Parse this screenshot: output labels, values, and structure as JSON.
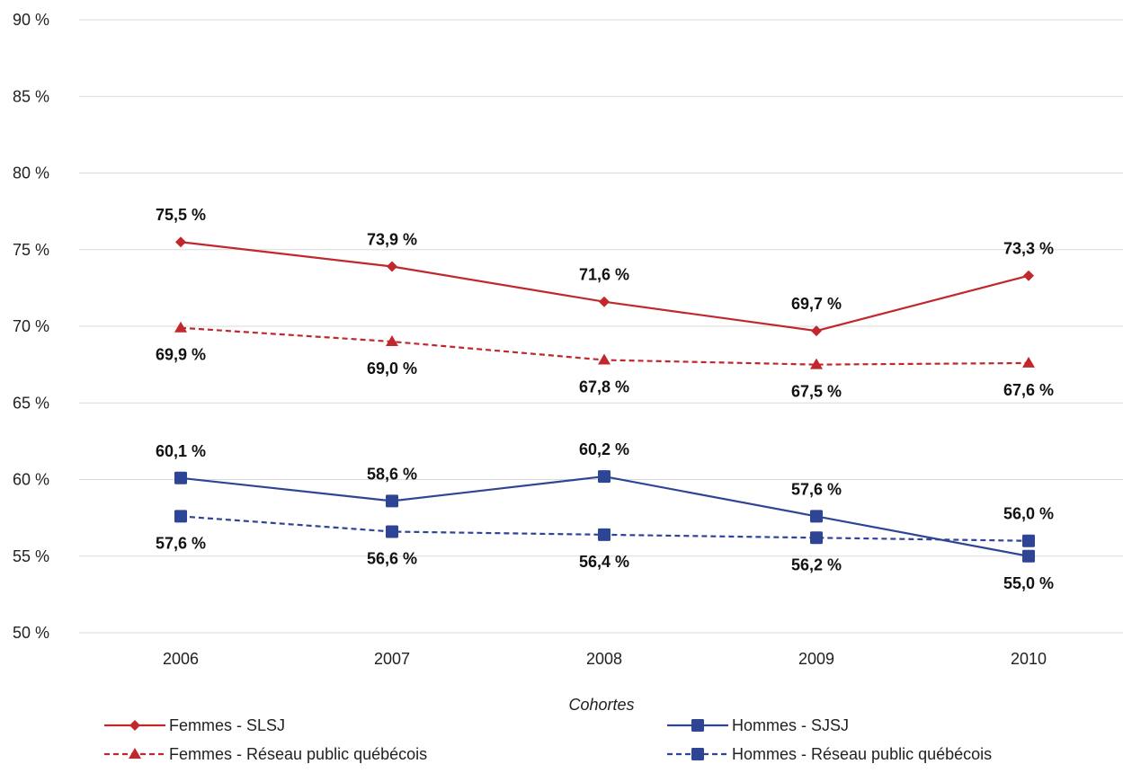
{
  "chart_data": {
    "type": "line",
    "title": "",
    "xlabel": "Cohortes",
    "ylabel": "",
    "categories": [
      "2006",
      "2007",
      "2008",
      "2009",
      "2010"
    ],
    "ylim": [
      50,
      90
    ],
    "yticks": [
      50,
      55,
      60,
      65,
      70,
      75,
      80,
      85,
      90
    ],
    "ytick_labels": [
      "50 %",
      "55 %",
      "60 %",
      "65 %",
      "70 %",
      "75 %",
      "80 %",
      "85 %",
      "90 %"
    ],
    "grid": true,
    "legend_position": "bottom",
    "series": [
      {
        "name": "Femmes - SLSJ",
        "values": [
          75.5,
          73.9,
          71.6,
          69.7,
          73.3
        ],
        "labels": [
          "75,5 %",
          "73,9 %",
          "71,6 %",
          "69,7 %",
          "73,3 %"
        ],
        "color": "#c0282d",
        "line_style": "solid",
        "marker": "diamond",
        "label_side": "above"
      },
      {
        "name": "Femmes - Réseau public québécois",
        "values": [
          69.9,
          69.0,
          67.8,
          67.5,
          67.6
        ],
        "labels": [
          "69,9 %",
          "69,0 %",
          "67,8 %",
          "67,5 %",
          "67,6 %"
        ],
        "color": "#c0282d",
        "line_style": "dashed",
        "marker": "triangle",
        "label_side": "below"
      },
      {
        "name": "Hommes - SJSJ",
        "values": [
          60.1,
          58.6,
          60.2,
          57.6,
          55.0
        ],
        "labels": [
          "60,1 %",
          "58,6 %",
          "60,2 %",
          "57,6 %",
          "55,0 %"
        ],
        "color": "#2e4596",
        "line_style": "solid",
        "marker": "square",
        "label_side": "above",
        "label_side_overrides": [
          "above",
          "above",
          "above",
          "above",
          "below"
        ]
      },
      {
        "name": "Hommes - Réseau public québécois",
        "values": [
          57.6,
          56.6,
          56.4,
          56.2,
          56.0
        ],
        "labels": [
          "57,6 %",
          "56,6 %",
          "56,4 %",
          "56,2 %",
          "56,0 %"
        ],
        "color": "#2e4596",
        "line_style": "dashed",
        "marker": "square",
        "label_side": "below",
        "label_side_overrides": [
          "below",
          "below",
          "below",
          "below",
          "above"
        ]
      }
    ]
  }
}
